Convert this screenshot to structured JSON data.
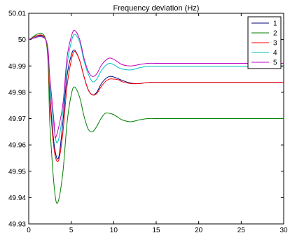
{
  "chart_data": {
    "type": "line",
    "title": "Frequency deviation (Hz)",
    "xlabel": "",
    "ylabel": "",
    "xlim": [
      0,
      30
    ],
    "ylim": [
      49.93,
      50.01
    ],
    "x_ticks": [
      "0",
      "5",
      "10",
      "15",
      "20",
      "25",
      "30"
    ],
    "y_ticks": [
      "49.93",
      "49.94",
      "49.95",
      "49.96",
      "49.97",
      "49.98",
      "49.99",
      "50",
      "50.01"
    ],
    "grid": false,
    "legend_position": "top-right",
    "series": [
      {
        "name": "1",
        "color": "#00007f",
        "x": [
          0,
          2,
          2.5,
          3.0,
          3.5,
          4.0,
          4.5,
          5.0,
          5.4,
          6.0,
          6.5,
          7.0,
          7.5,
          8.0,
          8.5,
          9.0,
          9.5,
          10.0,
          10.5,
          11.0,
          12.0,
          13.0,
          14.0,
          15.0,
          17.0,
          20.0,
          25.0,
          30.0
        ],
        "y": [
          50.0,
          50.0,
          49.978,
          49.96,
          49.955,
          49.968,
          49.986,
          49.994,
          49.996,
          49.992,
          49.986,
          49.981,
          49.979,
          49.98,
          49.983,
          49.985,
          49.986,
          49.9858,
          49.9852,
          49.9845,
          49.9835,
          49.9833,
          49.9837,
          49.9838,
          49.9838,
          49.9838,
          49.9838,
          49.9838
        ]
      },
      {
        "name": "2",
        "color": "#007f00",
        "x": [
          0,
          2,
          2.5,
          3.0,
          3.4,
          4.0,
          4.5,
          5.0,
          5.4,
          6.0,
          6.5,
          7.0,
          7.5,
          8.0,
          8.5,
          9.0,
          9.5,
          10.0,
          10.5,
          11.0,
          12.0,
          13.0,
          14.0,
          15.0,
          17.0,
          20.0,
          25.0,
          30.0
        ],
        "y": [
          50.0,
          50.0,
          49.967,
          49.944,
          49.938,
          49.949,
          49.968,
          49.979,
          49.982,
          49.978,
          49.971,
          49.966,
          49.965,
          49.967,
          49.97,
          49.972,
          49.972,
          49.9715,
          49.9705,
          49.9695,
          49.9688,
          49.9695,
          49.97,
          49.97,
          49.97,
          49.97,
          49.97,
          49.97
        ]
      },
      {
        "name": "3",
        "color": "#ff0000",
        "x": [
          0,
          2,
          2.5,
          3.0,
          3.5,
          4.0,
          4.5,
          5.0,
          5.4,
          6.0,
          6.5,
          7.0,
          7.5,
          8.0,
          8.5,
          9.0,
          9.5,
          10.0,
          10.5,
          11.0,
          12.0,
          13.0,
          14.0,
          15.0,
          17.0,
          20.0,
          25.0,
          30.0
        ],
        "y": [
          50.0,
          50.0,
          49.976,
          49.958,
          49.954,
          49.964,
          49.982,
          49.992,
          49.9955,
          49.992,
          49.986,
          49.981,
          49.979,
          49.9795,
          49.982,
          49.984,
          49.985,
          49.985,
          49.9848,
          49.984,
          49.9833,
          49.9833,
          49.9837,
          49.9838,
          49.9838,
          49.9838,
          49.9838,
          49.9838
        ]
      },
      {
        "name": "4",
        "color": "#00bfbf",
        "x": [
          0,
          2,
          2.5,
          3.0,
          3.4,
          4.0,
          4.5,
          5.0,
          5.4,
          6.0,
          6.5,
          7.0,
          7.5,
          8.0,
          8.5,
          9.0,
          9.5,
          10.0,
          10.5,
          11.0,
          12.0,
          13.0,
          14.0,
          15.0,
          17.0,
          20.0,
          25.0,
          30.0
        ],
        "y": [
          50.0,
          50.0,
          49.982,
          49.966,
          49.961,
          49.972,
          49.99,
          49.999,
          50.002,
          49.999,
          49.992,
          49.987,
          49.984,
          49.985,
          49.988,
          49.99,
          49.991,
          49.9905,
          49.9895,
          49.9888,
          49.9885,
          49.9893,
          49.9898,
          49.9898,
          49.9898,
          49.9898,
          49.9898,
          49.9898
        ]
      },
      {
        "name": "5",
        "color": "#bf00bf",
        "x": [
          0,
          2,
          2.5,
          3.0,
          3.2,
          4.0,
          4.5,
          5.0,
          5.4,
          6.0,
          6.5,
          7.0,
          7.5,
          8.0,
          8.5,
          9.0,
          9.5,
          10.0,
          10.5,
          11.0,
          12.0,
          13.0,
          14.0,
          15.0,
          17.0,
          20.0,
          25.0,
          30.0
        ],
        "y": [
          50.0,
          50.0,
          49.985,
          49.968,
          49.963,
          49.975,
          49.993,
          50.001,
          50.0035,
          50.0,
          49.993,
          49.988,
          49.986,
          49.987,
          49.99,
          49.992,
          49.993,
          49.9925,
          49.9915,
          49.9905,
          49.99,
          49.9905,
          49.991,
          49.991,
          49.991,
          49.991,
          49.991,
          49.991
        ]
      }
    ]
  }
}
